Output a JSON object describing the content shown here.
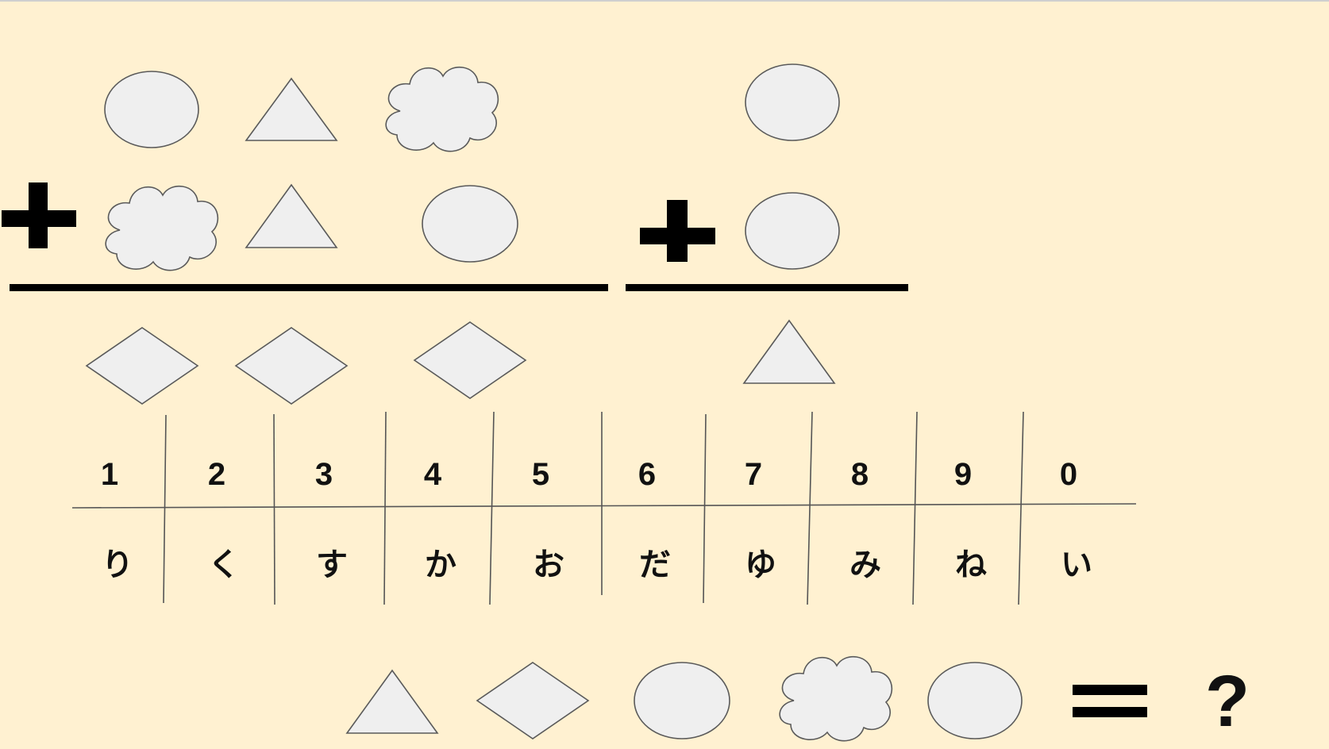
{
  "puzzle": {
    "equation1": {
      "addend_top": [
        "ellipse",
        "triangle",
        "cloud"
      ],
      "addend_bottom": [
        "cloud",
        "triangle",
        "ellipse"
      ],
      "sum": [
        "diamond",
        "diamond",
        "diamond"
      ]
    },
    "equation2": {
      "addend_top": [
        "ellipse"
      ],
      "addend_bottom": [
        "ellipse"
      ],
      "sum": [
        "triangle"
      ]
    },
    "question": {
      "shapes": [
        "triangle",
        "diamond",
        "ellipse",
        "cloud",
        "ellipse"
      ],
      "mark": "?"
    }
  },
  "cipher_table": {
    "digits": [
      "1",
      "2",
      "3",
      "4",
      "5",
      "6",
      "7",
      "8",
      "9",
      "0"
    ],
    "kana": [
      "り",
      "く",
      "す",
      "か",
      "お",
      "だ",
      "ゆ",
      "み",
      "ね",
      "い"
    ]
  },
  "icons": {
    "plus": "plus-icon",
    "equals": "equals-icon"
  },
  "colors": {
    "background": "#fff1d1",
    "shape_fill": "#efefef",
    "shape_stroke": "#5a5a5a",
    "ink": "#000000"
  }
}
